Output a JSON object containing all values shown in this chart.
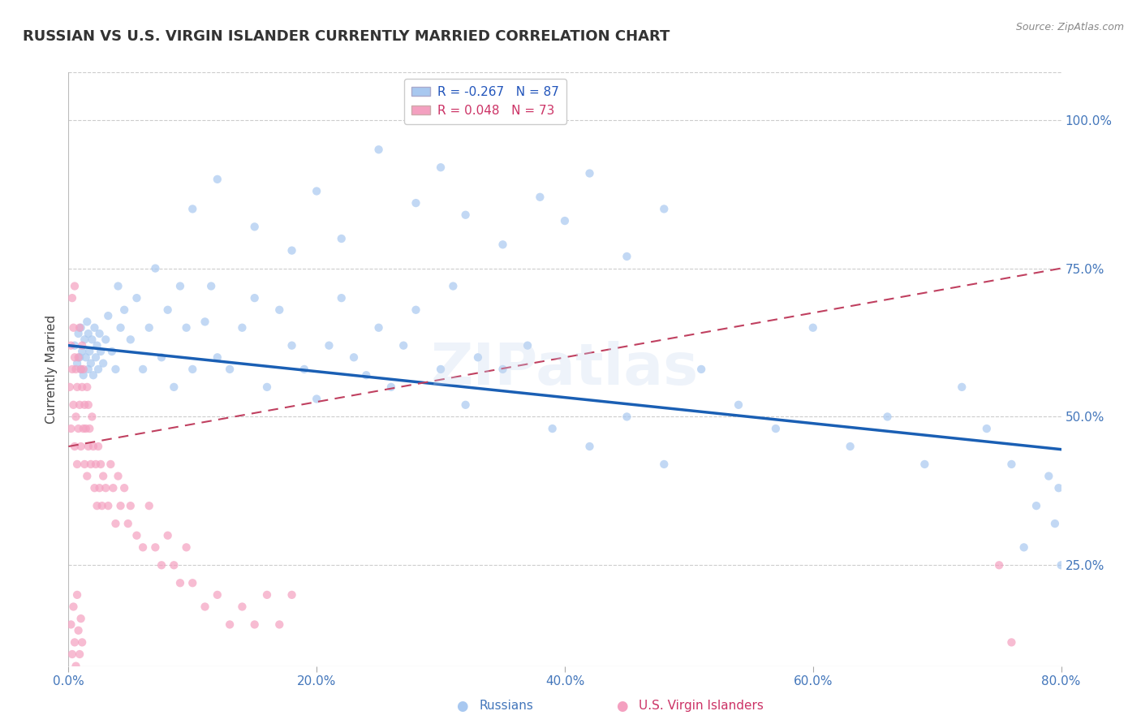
{
  "title": "RUSSIAN VS U.S. VIRGIN ISLANDER CURRENTLY MARRIED CORRELATION CHART",
  "source": "Source: ZipAtlas.com",
  "ylabel": "Currently Married",
  "xlim": [
    0.0,
    0.8
  ],
  "ylim": [
    0.08,
    1.08
  ],
  "yticks": [
    0.25,
    0.5,
    0.75,
    1.0
  ],
  "ytick_labels": [
    "25.0%",
    "50.0%",
    "75.0%",
    "100.0%"
  ],
  "xticks": [
    0.0,
    0.2,
    0.4,
    0.6,
    0.8
  ],
  "xtick_labels": [
    "0.0%",
    "20.0%",
    "40.0%",
    "60.0%",
    "80.0%"
  ],
  "russian_R": -0.267,
  "russian_N": 87,
  "virgin_R": 0.048,
  "virgin_N": 73,
  "russian_color": "#a8c8f0",
  "virgin_color": "#f4a0c0",
  "russian_line_color": "#1a5fb4",
  "virgin_line_color": "#c04060",
  "background_color": "#ffffff",
  "title_fontsize": 13,
  "watermark": "ZIPatlas",
  "russian_line_x0": 0.0,
  "russian_line_y0": 0.62,
  "russian_line_x1": 0.8,
  "russian_line_y1": 0.445,
  "virgin_line_x0": 0.0,
  "virgin_line_y0": 0.45,
  "virgin_line_x1": 0.8,
  "virgin_line_y1": 0.75,
  "russian_x": [
    0.005,
    0.007,
    0.008,
    0.009,
    0.01,
    0.01,
    0.011,
    0.012,
    0.013,
    0.014,
    0.015,
    0.016,
    0.016,
    0.017,
    0.018,
    0.019,
    0.02,
    0.021,
    0.022,
    0.023,
    0.024,
    0.025,
    0.026,
    0.028,
    0.03,
    0.032,
    0.035,
    0.038,
    0.04,
    0.042,
    0.045,
    0.05,
    0.055,
    0.06,
    0.065,
    0.07,
    0.075,
    0.08,
    0.085,
    0.09,
    0.095,
    0.1,
    0.11,
    0.115,
    0.12,
    0.13,
    0.14,
    0.15,
    0.16,
    0.17,
    0.18,
    0.19,
    0.2,
    0.21,
    0.22,
    0.23,
    0.24,
    0.25,
    0.26,
    0.27,
    0.28,
    0.3,
    0.31,
    0.32,
    0.33,
    0.35,
    0.37,
    0.39,
    0.42,
    0.45,
    0.48,
    0.51,
    0.54,
    0.57,
    0.6,
    0.63,
    0.66,
    0.69,
    0.72,
    0.74,
    0.76,
    0.77,
    0.78,
    0.79,
    0.795,
    0.798,
    0.8
  ],
  "russian_y": [
    0.62,
    0.59,
    0.64,
    0.6,
    0.58,
    0.65,
    0.61,
    0.57,
    0.63,
    0.6,
    0.66,
    0.58,
    0.64,
    0.61,
    0.59,
    0.63,
    0.57,
    0.65,
    0.6,
    0.62,
    0.58,
    0.64,
    0.61,
    0.59,
    0.63,
    0.67,
    0.61,
    0.58,
    0.72,
    0.65,
    0.68,
    0.63,
    0.7,
    0.58,
    0.65,
    0.75,
    0.6,
    0.68,
    0.55,
    0.72,
    0.65,
    0.58,
    0.66,
    0.72,
    0.6,
    0.58,
    0.65,
    0.7,
    0.55,
    0.68,
    0.62,
    0.58,
    0.53,
    0.62,
    0.7,
    0.6,
    0.57,
    0.65,
    0.55,
    0.62,
    0.68,
    0.58,
    0.72,
    0.52,
    0.6,
    0.58,
    0.62,
    0.48,
    0.45,
    0.5,
    0.42,
    0.58,
    0.52,
    0.48,
    0.65,
    0.45,
    0.5,
    0.42,
    0.55,
    0.48,
    0.42,
    0.28,
    0.35,
    0.4,
    0.32,
    0.38,
    0.25
  ],
  "russian_y_high": [
    0.85,
    0.9,
    0.82,
    0.78,
    0.88,
    0.95,
    0.8,
    0.86,
    0.92,
    0.84,
    0.79,
    0.87,
    0.83,
    0.91,
    0.77,
    0.85
  ],
  "russian_x_high": [
    0.1,
    0.12,
    0.15,
    0.18,
    0.2,
    0.25,
    0.22,
    0.28,
    0.3,
    0.32,
    0.35,
    0.38,
    0.4,
    0.42,
    0.45,
    0.48
  ],
  "virgin_x": [
    0.001,
    0.002,
    0.002,
    0.003,
    0.003,
    0.004,
    0.004,
    0.005,
    0.005,
    0.005,
    0.006,
    0.006,
    0.007,
    0.007,
    0.008,
    0.008,
    0.009,
    0.009,
    0.01,
    0.01,
    0.011,
    0.011,
    0.012,
    0.012,
    0.013,
    0.013,
    0.014,
    0.015,
    0.015,
    0.016,
    0.016,
    0.017,
    0.018,
    0.019,
    0.02,
    0.021,
    0.022,
    0.023,
    0.024,
    0.025,
    0.026,
    0.027,
    0.028,
    0.03,
    0.032,
    0.034,
    0.036,
    0.038,
    0.04,
    0.042,
    0.045,
    0.048,
    0.05,
    0.055,
    0.06,
    0.065,
    0.07,
    0.075,
    0.08,
    0.085,
    0.09,
    0.095,
    0.1,
    0.11,
    0.12,
    0.13,
    0.14,
    0.15,
    0.16,
    0.17,
    0.18,
    0.75,
    0.76
  ],
  "virgin_y": [
    0.55,
    0.62,
    0.48,
    0.58,
    0.7,
    0.52,
    0.65,
    0.6,
    0.45,
    0.72,
    0.5,
    0.58,
    0.55,
    0.42,
    0.6,
    0.48,
    0.65,
    0.52,
    0.58,
    0.45,
    0.55,
    0.62,
    0.48,
    0.58,
    0.42,
    0.52,
    0.48,
    0.55,
    0.4,
    0.52,
    0.45,
    0.48,
    0.42,
    0.5,
    0.45,
    0.38,
    0.42,
    0.35,
    0.45,
    0.38,
    0.42,
    0.35,
    0.4,
    0.38,
    0.35,
    0.42,
    0.38,
    0.32,
    0.4,
    0.35,
    0.38,
    0.32,
    0.35,
    0.3,
    0.28,
    0.35,
    0.28,
    0.25,
    0.3,
    0.25,
    0.22,
    0.28,
    0.22,
    0.18,
    0.2,
    0.15,
    0.18,
    0.15,
    0.2,
    0.15,
    0.2,
    0.25,
    0.12
  ],
  "virgin_y_low": [
    0.15,
    0.1,
    0.18,
    0.12,
    0.08,
    0.2,
    0.14,
    0.1,
    0.16,
    0.12
  ],
  "virgin_x_low": [
    0.002,
    0.003,
    0.004,
    0.005,
    0.006,
    0.007,
    0.008,
    0.009,
    0.01,
    0.011
  ]
}
